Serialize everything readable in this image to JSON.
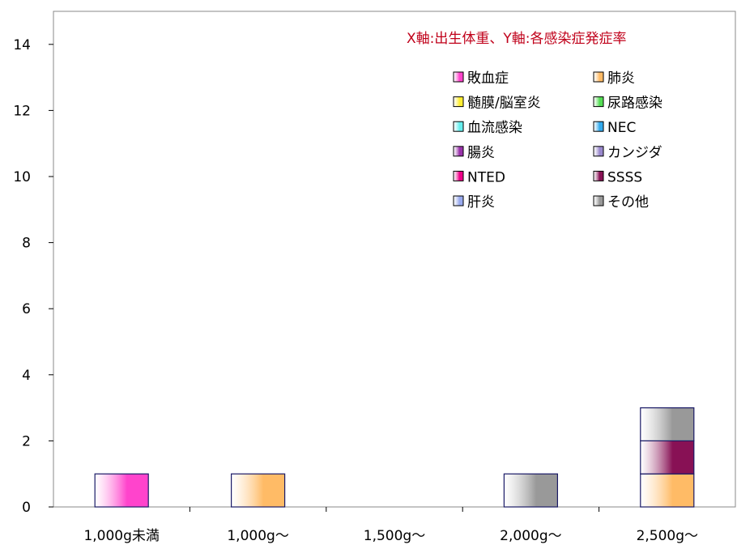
{
  "chart_data": {
    "type": "bar",
    "stacked": true,
    "title": "",
    "xlabel": "",
    "ylabel": "",
    "ylim": [
      0,
      15
    ],
    "yticks": [
      "0",
      "2",
      "4",
      "6",
      "8",
      "10",
      "12",
      "14"
    ],
    "grid": false,
    "legend_position": "top-right",
    "annotation": "X軸:出生体重、Y軸:各感染症発症率",
    "categories": [
      "1,000g未満",
      "1,000g〜",
      "1,500g〜",
      "2,000g〜",
      "2,500g〜"
    ],
    "series": [
      {
        "name": "敗血症",
        "color": "#ff44cc",
        "values": [
          1,
          0,
          0,
          0,
          0
        ]
      },
      {
        "name": "肺炎",
        "color": "#ffbb66",
        "values": [
          0,
          1,
          0,
          0,
          1
        ]
      },
      {
        "name": "髄膜/脳室炎",
        "color": "#ffee33",
        "values": [
          0,
          0,
          0,
          0,
          0
        ]
      },
      {
        "name": "尿路感染",
        "color": "#55dd55",
        "values": [
          0,
          0,
          0,
          0,
          0
        ]
      },
      {
        "name": "血流感染",
        "color": "#66eeee",
        "values": [
          0,
          0,
          0,
          0,
          0
        ]
      },
      {
        "name": "NEC",
        "color": "#33aaee",
        "values": [
          0,
          0,
          0,
          0,
          0
        ]
      },
      {
        "name": "腸炎",
        "color": "#9933aa",
        "values": [
          0,
          0,
          0,
          0,
          0
        ]
      },
      {
        "name": "カンジダ",
        "color": "#9988cc",
        "values": [
          0,
          0,
          0,
          0,
          0
        ]
      },
      {
        "name": "NTED",
        "color": "#ee0088",
        "values": [
          0,
          0,
          0,
          0,
          0
        ]
      },
      {
        "name": "SSSS",
        "color": "#881155",
        "values": [
          0,
          0,
          0,
          0,
          1
        ]
      },
      {
        "name": "肝炎",
        "color": "#99aaee",
        "values": [
          0,
          0,
          0,
          0,
          0
        ]
      },
      {
        "name": "その他",
        "color": "#999999",
        "values": [
          0,
          0,
          0,
          1,
          1
        ]
      }
    ]
  }
}
